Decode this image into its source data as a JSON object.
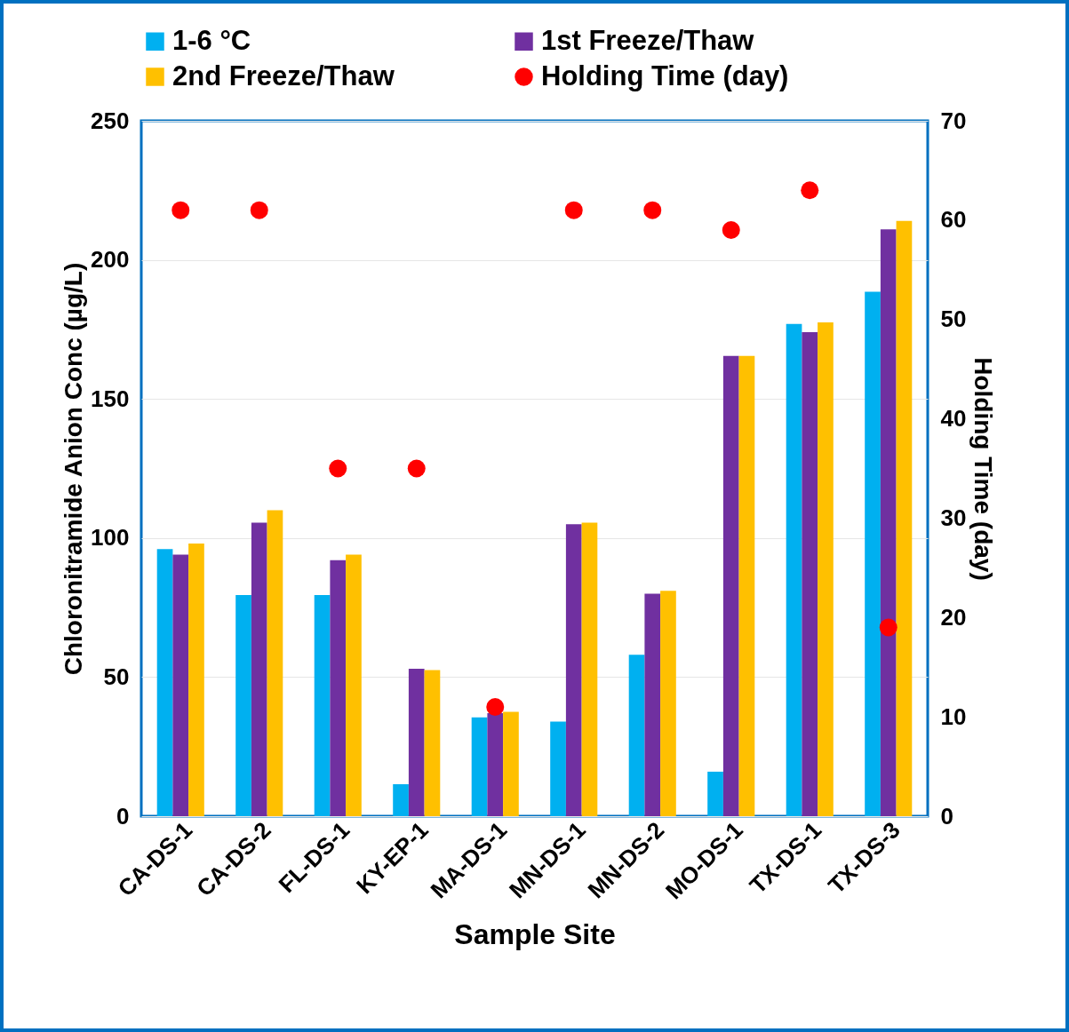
{
  "chart_data": {
    "type": "bar",
    "xlabel": "Sample Site",
    "ylabel": "Chloronitramide Anion Conc (µg/L)",
    "y2label": "Holding Time (day)",
    "categories": [
      "CA-DS-1",
      "CA-DS-2",
      "FL-DS-1",
      "KY-EP-1",
      "MA-DS-1",
      "MN-DS-1",
      "MN-DS-2",
      "MO-DS-1",
      "TX-DS-1",
      "TX-DS-3"
    ],
    "series": [
      {
        "name": "1-6 °C",
        "color": "#00b0f0",
        "values": [
          96,
          79.5,
          79.5,
          11.5,
          35.5,
          34,
          58,
          16,
          177,
          188.5
        ]
      },
      {
        "name": "1st Freeze/Thaw",
        "color": "#7030a0",
        "values": [
          94,
          105.5,
          92,
          53,
          37,
          105,
          80,
          165.5,
          174,
          211
        ]
      },
      {
        "name": "2nd Freeze/Thaw",
        "color": "#ffc000",
        "values": [
          98,
          110,
          94,
          52.5,
          37.5,
          105.5,
          81,
          165.5,
          177.5,
          214
        ]
      },
      {
        "name": "Holding Time (day)",
        "type": "scatter",
        "axis": "y2",
        "color": "#ff0000",
        "values": [
          61,
          61,
          35,
          35,
          11,
          61,
          61,
          59,
          63,
          19
        ]
      }
    ],
    "ylim": [
      0,
      250
    ],
    "yticks": [
      0,
      50,
      100,
      150,
      200,
      250
    ],
    "y2lim": [
      0,
      70
    ],
    "y2ticks": [
      0,
      10,
      20,
      30,
      40,
      50,
      60,
      70
    ],
    "grid": "y",
    "legend": "top",
    "marker": "circle"
  }
}
